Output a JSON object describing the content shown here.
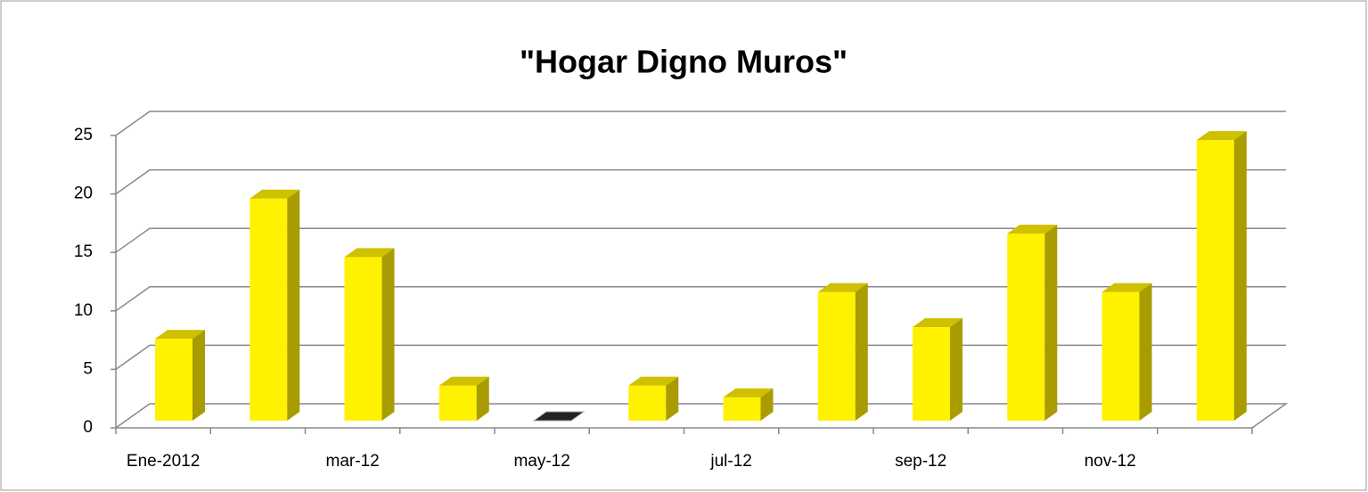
{
  "chart_data": {
    "type": "bar3d",
    "title": "\"Hogar Digno Muros\"",
    "categories": [
      "Ene-2012",
      null,
      "mar-12",
      null,
      "may-12",
      null,
      "jul-12",
      null,
      "sep-12",
      null,
      "nov-12",
      null
    ],
    "values": [
      7,
      19,
      14,
      3,
      0,
      3,
      2,
      11,
      8,
      16,
      11,
      24
    ],
    "color": "#fff200",
    "ylim": [
      0,
      25
    ],
    "yticks": [
      0,
      5,
      10,
      15,
      20,
      25
    ],
    "grid": true
  }
}
